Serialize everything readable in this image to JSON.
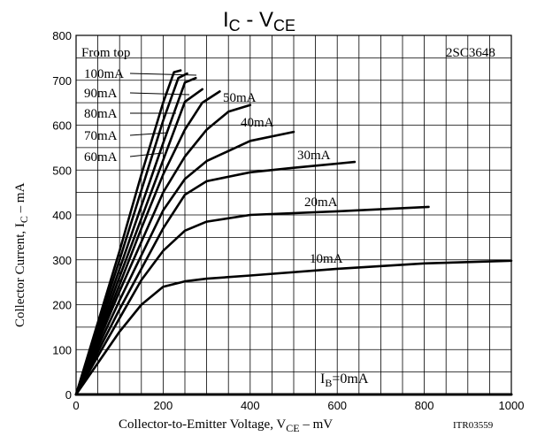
{
  "chart_data": {
    "type": "line",
    "title": {
      "main": "I",
      "main_sub": "C",
      "sep": " - ",
      "second": "V",
      "second_sub": "CE"
    },
    "xlabel": {
      "pre": "Collector-to-Emitter Voltage, V",
      "sub": "CE",
      "post": " – mV"
    },
    "ylabel": {
      "pre": "Collector Current, I",
      "sub": "C",
      "post": " – mA"
    },
    "code": "ITR03559",
    "part_number": "2SC3648",
    "legend_header": "From top",
    "xlim": [
      0,
      1000
    ],
    "ylim": [
      0,
      800
    ],
    "x_ticks": [
      0,
      200,
      400,
      600,
      800,
      1000
    ],
    "y_ticks": [
      0,
      100,
      200,
      300,
      400,
      500,
      600,
      700,
      800
    ],
    "x_tick_labels": [
      "0",
      "200",
      "400",
      "600",
      "800",
      "1000"
    ],
    "y_tick_labels": [
      "0",
      "100",
      "200",
      "300",
      "400",
      "500",
      "600",
      "700",
      "800"
    ],
    "grid": true,
    "series": [
      {
        "name": "100mA",
        "x": [
          0,
          50,
          100,
          150,
          200,
          225,
          240
        ],
        "y": [
          0,
          160,
          320,
          490,
          650,
          718,
          722
        ]
      },
      {
        "name": "90mA",
        "x": [
          0,
          50,
          100,
          150,
          200,
          235,
          255
        ],
        "y": [
          0,
          150,
          300,
          455,
          610,
          705,
          715
        ]
      },
      {
        "name": "80mA",
        "x": [
          0,
          50,
          100,
          150,
          200,
          250,
          275
        ],
        "y": [
          0,
          140,
          280,
          420,
          560,
          695,
          705
        ]
      },
      {
        "name": "70mA",
        "x": [
          0,
          50,
          100,
          150,
          200,
          250,
          290
        ],
        "y": [
          0,
          130,
          262,
          392,
          522,
          652,
          680
        ]
      },
      {
        "name": "60mA",
        "x": [
          0,
          50,
          100,
          150,
          200,
          250,
          290,
          330
        ],
        "y": [
          0,
          122,
          245,
          370,
          490,
          590,
          650,
          675
        ]
      },
      {
        "name": "50mA",
        "x": [
          0,
          50,
          100,
          150,
          200,
          250,
          300,
          350,
          400
        ],
        "y": [
          0,
          115,
          230,
          340,
          450,
          530,
          590,
          630,
          645
        ]
      },
      {
        "name": "40mA",
        "x": [
          0,
          50,
          100,
          150,
          200,
          250,
          300,
          400,
          500
        ],
        "y": [
          0,
          105,
          210,
          310,
          410,
          480,
          520,
          565,
          585
        ]
      },
      {
        "name": "30mA",
        "x": [
          0,
          50,
          100,
          150,
          200,
          250,
          300,
          400,
          500,
          640
        ],
        "y": [
          0,
          95,
          190,
          280,
          370,
          445,
          475,
          495,
          505,
          518
        ]
      },
      {
        "name": "20mA",
        "x": [
          0,
          50,
          100,
          150,
          200,
          250,
          300,
          400,
          600,
          810
        ],
        "y": [
          0,
          85,
          170,
          255,
          320,
          365,
          385,
          400,
          408,
          418
        ]
      },
      {
        "name": "10mA",
        "x": [
          0,
          50,
          100,
          150,
          200,
          250,
          300,
          400,
          600,
          800,
          1000
        ],
        "y": [
          0,
          70,
          140,
          200,
          240,
          252,
          258,
          265,
          280,
          292,
          298
        ]
      },
      {
        "name": "0mA",
        "x": [
          0,
          1000
        ],
        "y": [
          0,
          0
        ]
      }
    ],
    "annotations": [
      {
        "text": "100mA",
        "series": "100mA",
        "left": true
      },
      {
        "text": "90mA",
        "series": "90mA",
        "left": true
      },
      {
        "text": "80mA",
        "series": "80mA",
        "left": true
      },
      {
        "text": "70mA",
        "series": "70mA",
        "left": true
      },
      {
        "text": "60mA",
        "series": "60mA",
        "left": true
      },
      {
        "text": "50mA",
        "series": "50mA"
      },
      {
        "text": "40mA",
        "series": "40mA"
      },
      {
        "text": "30mA",
        "series": "30mA"
      },
      {
        "text": "20mA",
        "series": "20mA"
      },
      {
        "text": "10mA",
        "series": "10mA"
      }
    ],
    "ib_label": {
      "pre": "I",
      "sub": "B",
      "post": "=0mA"
    }
  }
}
